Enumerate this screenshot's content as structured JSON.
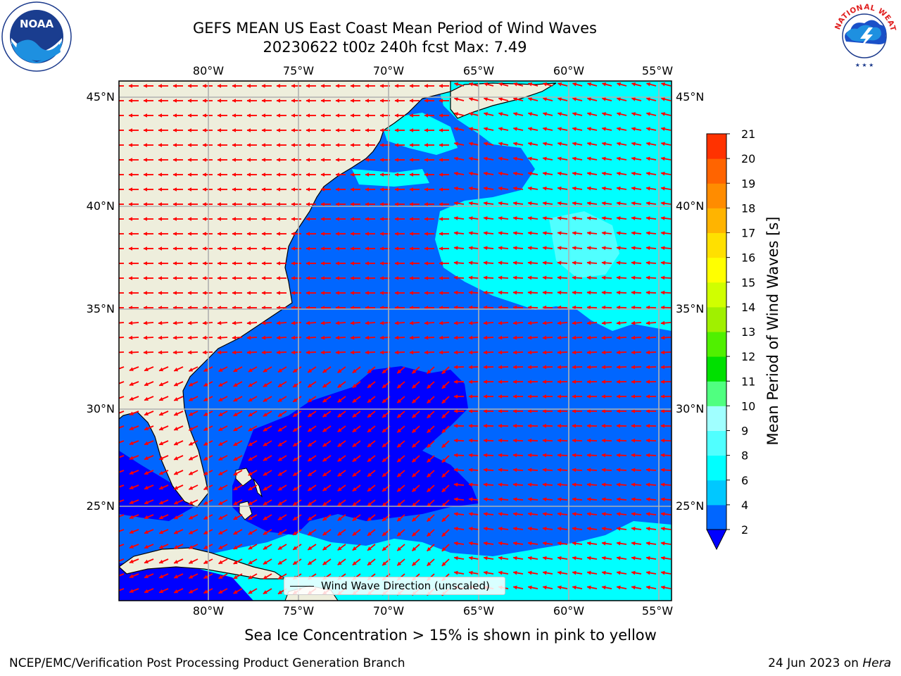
{
  "title_line1": "GEFS MEAN US East Coast Mean Period of Wind Waves",
  "title_line2": "20230622 t00z 240h fcst   Max: 7.49",
  "subtitle": "Sea Ice Concentration > 15% is shown in pink to yellow",
  "footer_left": "NCEP/EMC/Verification Post Processing Product Generation Branch",
  "footer_right_date": "24 Jun 2023 on ",
  "footer_right_machine": "Hera",
  "legend_label": "Wind Wave Direction (unscaled)",
  "colorbar": {
    "label": "Mean Period of Wind Waves [s]",
    "ticks": [
      "2",
      "4",
      "6",
      "8",
      "9",
      "10",
      "11",
      "12",
      "13",
      "14",
      "15",
      "16",
      "17",
      "18",
      "19",
      "20",
      "21"
    ],
    "colors": [
      "#0066ff",
      "#00c8ff",
      "#00ffff",
      "#50ffff",
      "#a0ffff",
      "#50ff80",
      "#00e000",
      "#50f000",
      "#a0f000",
      "#d0ff00",
      "#ffff00",
      "#ffe000",
      "#ffb400",
      "#ff8c00",
      "#ff6400",
      "#ff3200",
      "#ff0000"
    ],
    "extend_color": "#0000ff"
  },
  "map": {
    "lon_labels": [
      "80°W",
      "75°W",
      "70°W",
      "65°W",
      "60°W",
      "55°W"
    ],
    "lat_labels": [
      "45°N",
      "40°N",
      "35°N",
      "30°N",
      "25°N"
    ],
    "land_color": "#eeeedc",
    "arrow_color": "#ff0000",
    "colors": {
      "deep_blue": "#0000ff",
      "blue": "#0066ff",
      "cyan": "#00ffff",
      "light_cyan": "#50ffff",
      "pale_cyan": "#a0ffff"
    }
  },
  "logos": {
    "noaa_text": "NOAA",
    "nws_text": "NATIONAL WEATHER SERVICE"
  }
}
